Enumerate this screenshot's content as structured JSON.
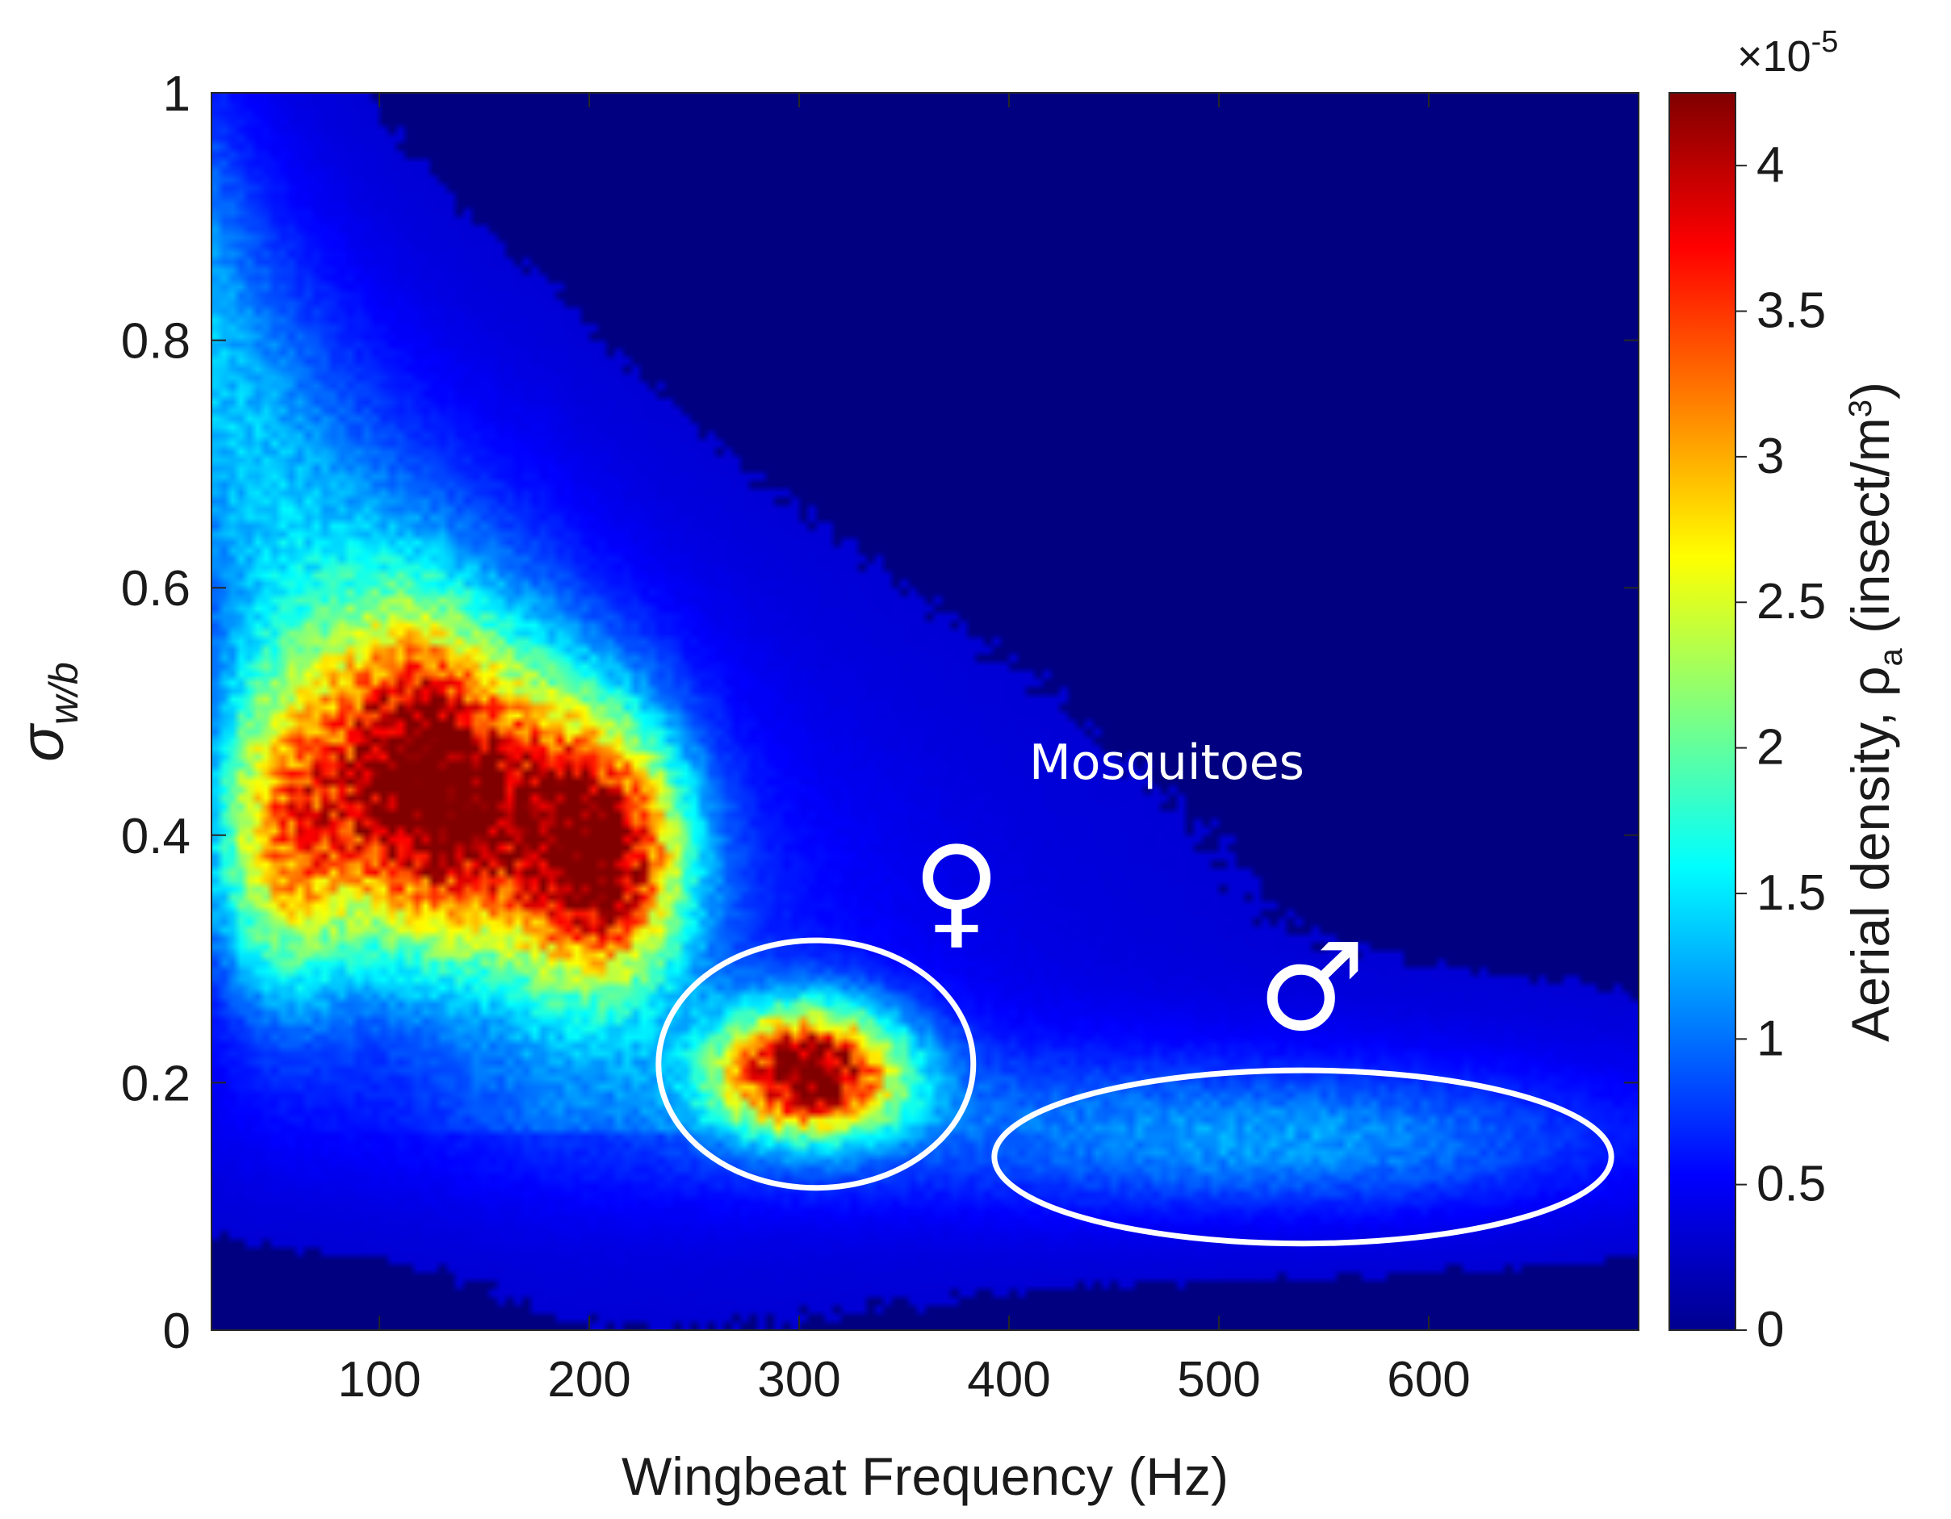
{
  "chart_data": {
    "type": "heatmap",
    "xlabel": "Wingbeat Frequency (Hz)",
    "ylabel_main": "σ",
    "ylabel_sub": "w/b",
    "xlim": [
      20,
      700
    ],
    "ylim": [
      0,
      1
    ],
    "x_ticks": [
      100,
      200,
      300,
      400,
      500,
      600
    ],
    "x_tick_labels": [
      "100",
      "200",
      "300",
      "400",
      "500",
      "600"
    ],
    "y_ticks": [
      0,
      0.2,
      0.4,
      0.6,
      0.8,
      1
    ],
    "y_tick_labels": [
      "0",
      "0.2",
      "0.4",
      "0.6",
      "0.8",
      "1"
    ],
    "colorbar": {
      "label": "Aerial density,  ρ",
      "label_sub": "a",
      "label_unit": " (insect/m",
      "label_unit_sup": "3",
      "label_unit_end": ")",
      "range": [
        0,
        4.25
      ],
      "ticks": [
        0,
        0.5,
        1,
        1.5,
        2,
        2.5,
        3,
        3.5,
        4
      ],
      "tick_labels": [
        "0",
        "0.5",
        "1",
        "1.5",
        "2",
        "2.5",
        "3",
        "3.5",
        "4"
      ],
      "multiplier_prefix": "×10",
      "multiplier_exp": "-5",
      "colormap": "jet"
    },
    "density_clusters": [
      {
        "x": 55,
        "y": 0.4,
        "sx": 25,
        "sy": 0.09,
        "peak": 2.7
      },
      {
        "x": 115,
        "y": 0.45,
        "sx": 28,
        "sy": 0.09,
        "peak": 3.0
      },
      {
        "x": 210,
        "y": 0.38,
        "sx": 25,
        "sy": 0.07,
        "peak": 3.1
      },
      {
        "x": 165,
        "y": 0.42,
        "sx": 35,
        "sy": 0.08,
        "peak": 2.2
      },
      {
        "x": 305,
        "y": 0.21,
        "sx": 30,
        "sy": 0.035,
        "peak": 4.2
      },
      {
        "x": 540,
        "y": 0.15,
        "sx": 95,
        "sy": 0.035,
        "peak": 0.6
      }
    ],
    "annotations": {
      "mosquitoes": "Mosquitoes",
      "female_symbol": "♀",
      "male_symbol": "♂"
    },
    "highlight_ellipses": [
      {
        "label": "female",
        "cx": 308,
        "cy": 0.215,
        "rx": 75,
        "ry": 0.1
      },
      {
        "label": "male",
        "cx": 540,
        "cy": 0.14,
        "rx": 147,
        "ry": 0.07
      }
    ]
  }
}
